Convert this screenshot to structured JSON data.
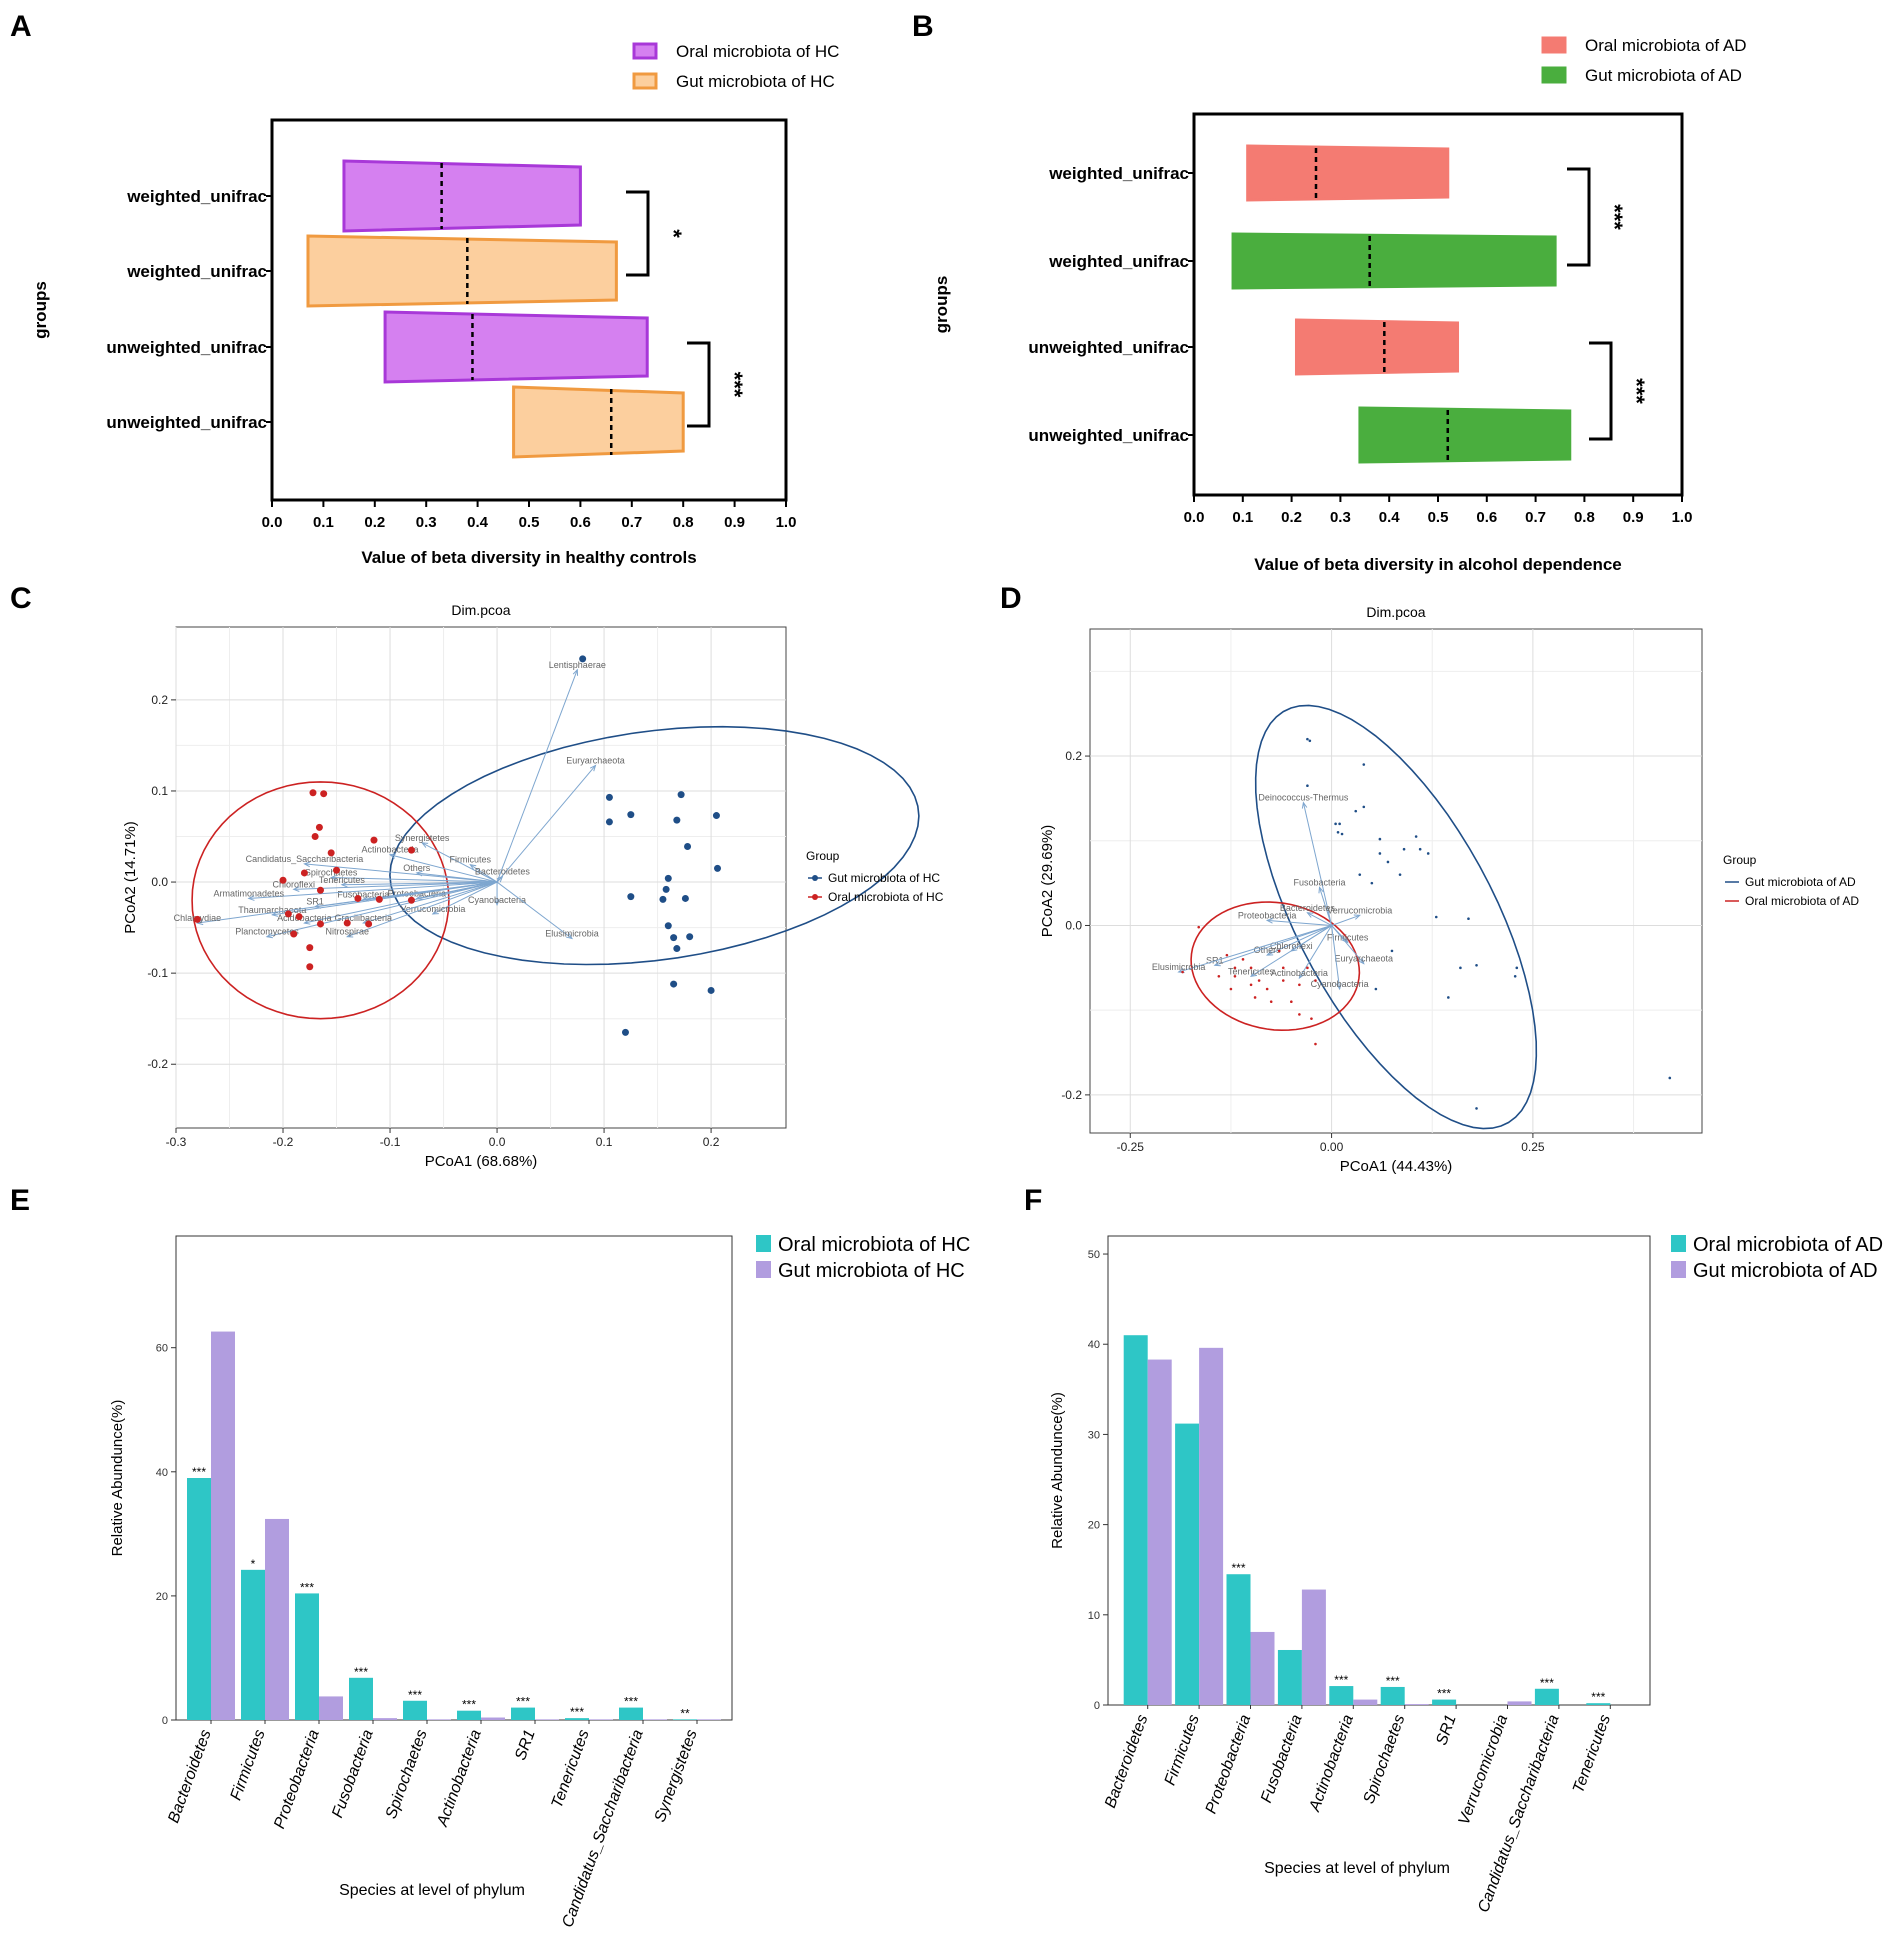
{
  "chart_data": [
    {
      "id": "A",
      "panel_letter": "A",
      "type": "violin_boxplot",
      "xlabel": "Value of beta diversity in healthy controls",
      "ylabel": "groups",
      "xlim": [
        0,
        1
      ],
      "x_ticks": [
        "0.0",
        "0.1",
        "0.2",
        "0.3",
        "0.4",
        "0.5",
        "0.6",
        "0.7",
        "0.8",
        "0.9",
        "1.0"
      ],
      "legend": [
        {
          "label": "Oral microbiota of HC",
          "color": "#d580f0",
          "edge": "#a838d8"
        },
        {
          "label": "Gut microbiota of HC",
          "color": "#fccf9e",
          "edge": "#f09a40"
        }
      ],
      "rows": [
        {
          "label": "weighted_unifrac",
          "group": 0,
          "min": 0.14,
          "median": 0.33,
          "max": 0.6
        },
        {
          "label": "weighted_unifrac",
          "group": 1,
          "min": 0.07,
          "median": 0.38,
          "max": 0.67
        },
        {
          "label": "unweighted_unifrac",
          "group": 0,
          "min": 0.22,
          "median": 0.39,
          "max": 0.73
        },
        {
          "label": "unweighted_unifrac",
          "group": 1,
          "min": 0.47,
          "median": 0.66,
          "max": 0.8
        }
      ],
      "significance": [
        {
          "rows": [
            0,
            1
          ],
          "label": "*"
        },
        {
          "rows": [
            2,
            3
          ],
          "label": "***"
        }
      ]
    },
    {
      "id": "B",
      "panel_letter": "B",
      "type": "violin_boxplot",
      "xlabel": "Value of beta diversity in alcohol dependence",
      "ylabel": "groups",
      "xlim": [
        0,
        1
      ],
      "x_ticks": [
        "0.0",
        "0.1",
        "0.2",
        "0.3",
        "0.4",
        "0.5",
        "0.6",
        "0.7",
        "0.8",
        "0.9",
        "1.0"
      ],
      "legend": [
        {
          "label": "Oral microbiota of AD",
          "color": "#f47b72",
          "edge": "#f47b72"
        },
        {
          "label": "Gut microbiota of AD",
          "color": "#4aae3e",
          "edge": "#4aae3e"
        }
      ],
      "rows": [
        {
          "label": "weighted_unifrac",
          "group": 0,
          "min": 0.11,
          "median": 0.25,
          "max": 0.52
        },
        {
          "label": "weighted_unifrac",
          "group": 1,
          "min": 0.08,
          "median": 0.36,
          "max": 0.74
        },
        {
          "label": "unweighted_unifrac",
          "group": 0,
          "min": 0.21,
          "median": 0.39,
          "max": 0.54
        },
        {
          "label": "unweighted_unifrac",
          "group": 1,
          "min": 0.34,
          "median": 0.52,
          "max": 0.77
        }
      ],
      "significance": [
        {
          "rows": [
            0,
            1
          ],
          "label": "***"
        },
        {
          "rows": [
            2,
            3
          ],
          "label": "***"
        }
      ]
    },
    {
      "id": "C",
      "panel_letter": "C",
      "type": "scatter",
      "title": "Dim.pcoa",
      "xlabel": "PCoA1 (68.68%)",
      "ylabel": "PCoA2 (14.71%)",
      "xlim": [
        -0.3,
        0.27
      ],
      "ylim": [
        -0.27,
        0.28
      ],
      "x_ticks": [
        -0.3,
        -0.2,
        -0.1,
        0.0,
        0.1,
        0.2
      ],
      "x_tick_labels": [
        "-0.3",
        "-0.2",
        "-0.1",
        "0.0",
        "0.1",
        "0.2"
      ],
      "y_ticks": [
        -0.2,
        -0.1,
        0.0,
        0.1,
        0.2
      ],
      "y_tick_labels": [
        "-0.2",
        "-0.1",
        "0.0",
        "0.1",
        "0.2"
      ],
      "legend_title": "Group",
      "series": [
        {
          "name": "Gut microbiota of HC",
          "color": "#1f4e87",
          "points": [
            [
              0.08,
              0.245
            ],
            [
              0.105,
              0.093
            ],
            [
              0.125,
              0.074
            ],
            [
              0.105,
              0.066
            ],
            [
              0.172,
              0.096
            ],
            [
              0.168,
              0.068
            ],
            [
              0.205,
              0.073
            ],
            [
              0.178,
              0.039
            ],
            [
              0.16,
              0.004
            ],
            [
              0.206,
              0.015
            ],
            [
              0.125,
              -0.016
            ],
            [
              0.158,
              -0.008
            ],
            [
              0.176,
              -0.018
            ],
            [
              0.155,
              -0.019
            ],
            [
              0.16,
              -0.048
            ],
            [
              0.18,
              -0.06
            ],
            [
              0.165,
              -0.061
            ],
            [
              0.168,
              -0.073
            ],
            [
              0.165,
              -0.112
            ],
            [
              0.2,
              -0.119
            ],
            [
              0.12,
              -0.165
            ]
          ],
          "ellipse": {
            "cx": 0.147,
            "cy": 0.04,
            "rx": 0.125,
            "ry": 0.25,
            "rot": -80
          }
        },
        {
          "name": "Oral microbiota of HC",
          "color": "#cc2222",
          "points": [
            [
              -0.172,
              0.098
            ],
            [
              -0.162,
              0.097
            ],
            [
              -0.166,
              0.06
            ],
            [
              -0.17,
              0.05
            ],
            [
              -0.115,
              0.046
            ],
            [
              -0.155,
              0.032
            ],
            [
              -0.08,
              0.035
            ],
            [
              -0.18,
              0.01
            ],
            [
              -0.15,
              0.013
            ],
            [
              -0.2,
              0.002
            ],
            [
              -0.165,
              -0.009
            ],
            [
              -0.11,
              -0.019
            ],
            [
              -0.13,
              -0.018
            ],
            [
              -0.08,
              -0.02
            ],
            [
              -0.185,
              -0.038
            ],
            [
              -0.195,
              -0.035
            ],
            [
              -0.14,
              -0.045
            ],
            [
              -0.165,
              -0.046
            ],
            [
              -0.12,
              -0.046
            ],
            [
              -0.28,
              -0.041
            ],
            [
              -0.19,
              -0.057
            ],
            [
              -0.175,
              -0.072
            ],
            [
              -0.175,
              -0.093
            ]
          ],
          "ellipse": {
            "cx": -0.165,
            "cy": -0.02,
            "rx": 0.12,
            "ry": 0.13,
            "rot": 0
          }
        }
      ],
      "arrows": [
        {
          "name": "Lentisphaerae",
          "x": 0.075,
          "y": 0.233
        },
        {
          "name": "Euryarchaeota",
          "x": 0.092,
          "y": 0.128
        },
        {
          "name": "Synergistetes",
          "x": -0.07,
          "y": 0.043
        },
        {
          "name": "Actinobacteria",
          "x": -0.1,
          "y": 0.03
        },
        {
          "name": "Firmicutes",
          "x": -0.025,
          "y": 0.019
        },
        {
          "name": "Candidatus_Saccharibacteria",
          "x": -0.18,
          "y": 0.02
        },
        {
          "name": "Others",
          "x": -0.075,
          "y": 0.01
        },
        {
          "name": "Spirochaetes",
          "x": -0.155,
          "y": 0.005
        },
        {
          "name": "Bacteroidetes",
          "x": 0.005,
          "y": 0.006
        },
        {
          "name": "Tenericutes",
          "x": -0.145,
          "y": -0.003
        },
        {
          "name": "Chloroflexi",
          "x": -0.19,
          "y": -0.008
        },
        {
          "name": "Proteobacteria",
          "x": -0.075,
          "y": -0.018
        },
        {
          "name": "Fusobacteria",
          "x": -0.125,
          "y": -0.019
        },
        {
          "name": "Armatimonadetes",
          "x": -0.232,
          "y": -0.018
        },
        {
          "name": "Cyanobacteria",
          "x": 0.0,
          "y": -0.025
        },
        {
          "name": "SR1",
          "x": -0.17,
          "y": -0.027
        },
        {
          "name": "Thaumarchaeota",
          "x": -0.21,
          "y": -0.036
        },
        {
          "name": "Verrucomicrobia",
          "x": -0.06,
          "y": -0.035
        },
        {
          "name": "Acidobacteria",
          "x": -0.18,
          "y": -0.045
        },
        {
          "name": "Gracilibacteria",
          "x": -0.125,
          "y": -0.045
        },
        {
          "name": "Chlamydiae",
          "x": -0.28,
          "y": -0.045
        },
        {
          "name": "Nitrospirae",
          "x": -0.14,
          "y": -0.06
        },
        {
          "name": "Planctomycetes",
          "x": -0.215,
          "y": -0.06
        },
        {
          "name": "Elusimicrobia",
          "x": 0.07,
          "y": -0.062
        }
      ]
    },
    {
      "id": "D",
      "panel_letter": "D",
      "type": "scatter",
      "title": "Dim.pcoa",
      "xlabel": "PCoA1 (44.43%)",
      "ylabel": "PCoA2 (29.69%)",
      "xlim": [
        -0.3,
        0.46
      ],
      "ylim": [
        -0.245,
        0.35
      ],
      "x_ticks": [
        -0.25,
        0.0,
        0.25
      ],
      "x_tick_labels": [
        "-0.25",
        "0.00",
        "0.25"
      ],
      "x_minor": [
        -0.125,
        0.125,
        0.375
      ],
      "y_ticks": [
        -0.2,
        0.0,
        0.2
      ],
      "y_tick_labels": [
        "-0.2",
        "0.0",
        "0.2"
      ],
      "y_minor": [
        -0.1,
        0.1,
        0.3
      ],
      "legend_title": "Group",
      "series": [
        {
          "name": "Gut microbiota of AD",
          "color": "#1f4e87",
          "points": [
            [
              -0.03,
              0.22
            ],
            [
              -0.027,
              0.218
            ],
            [
              0.04,
              0.19
            ],
            [
              -0.03,
              0.165
            ],
            [
              0.04,
              0.14
            ],
            [
              0.03,
              0.135
            ],
            [
              0.005,
              0.12
            ],
            [
              0.01,
              0.12
            ],
            [
              0.008,
              0.11
            ],
            [
              0.013,
              0.108
            ],
            [
              0.06,
              0.102
            ],
            [
              0.105,
              0.105
            ],
            [
              0.09,
              0.09
            ],
            [
              0.11,
              0.09
            ],
            [
              0.12,
              0.085
            ],
            [
              0.06,
              0.085
            ],
            [
              0.07,
              0.075
            ],
            [
              0.035,
              0.06
            ],
            [
              0.085,
              0.06
            ],
            [
              0.05,
              0.05
            ],
            [
              0.13,
              0.01
            ],
            [
              0.17,
              0.008
            ],
            [
              0.075,
              -0.03
            ],
            [
              0.18,
              -0.047
            ],
            [
              0.16,
              -0.05
            ],
            [
              0.23,
              -0.05
            ],
            [
              0.228,
              -0.06
            ],
            [
              0.055,
              -0.075
            ],
            [
              0.145,
              -0.085
            ],
            [
              0.42,
              -0.18
            ],
            [
              0.18,
              -0.216
            ]
          ],
          "ellipse": {
            "cx": 0.08,
            "cy": 0.01,
            "rx": 0.28,
            "ry": 0.12,
            "rot": -60
          }
        },
        {
          "name": "Oral microbiota of AD",
          "color": "#cc2222",
          "points": [
            [
              -0.165,
              -0.002
            ],
            [
              -0.185,
              -0.055
            ],
            [
              -0.13,
              -0.035
            ],
            [
              -0.11,
              -0.04
            ],
            [
              -0.12,
              -0.05
            ],
            [
              -0.1,
              -0.05
            ],
            [
              -0.12,
              -0.06
            ],
            [
              -0.09,
              -0.065
            ],
            [
              -0.1,
              -0.07
            ],
            [
              -0.08,
              -0.075
            ],
            [
              -0.095,
              -0.085
            ],
            [
              -0.075,
              -0.09
            ],
            [
              -0.05,
              -0.09
            ],
            [
              -0.04,
              -0.07
            ],
            [
              -0.04,
              -0.105
            ],
            [
              -0.025,
              -0.11
            ],
            [
              -0.06,
              -0.065
            ],
            [
              -0.03,
              -0.05
            ],
            [
              -0.125,
              -0.075
            ],
            [
              -0.14,
              -0.06
            ],
            [
              -0.065,
              -0.03
            ],
            [
              -0.06,
              -0.05
            ],
            [
              -0.02,
              -0.065
            ],
            [
              -0.02,
              -0.14
            ]
          ],
          "ellipse": {
            "cx": -0.07,
            "cy": -0.048,
            "rx": 0.105,
            "ry": 0.075,
            "rot": -8
          }
        }
      ],
      "arrows": [
        {
          "name": "Deinococcus-Thermus",
          "x": -0.035,
          "y": 0.145
        },
        {
          "name": "Fusobacteria",
          "x": -0.015,
          "y": 0.045
        },
        {
          "name": "Bacteroidetes",
          "x": -0.03,
          "y": 0.015
        },
        {
          "name": "Verrucomicrobia",
          "x": 0.035,
          "y": 0.012
        },
        {
          "name": "Proteobacteria",
          "x": -0.08,
          "y": 0.006
        },
        {
          "name": "Firmicutes",
          "x": 0.02,
          "y": -0.02
        },
        {
          "name": "Others",
          "x": -0.08,
          "y": -0.035
        },
        {
          "name": "Chloroflexi",
          "x": -0.05,
          "y": -0.03
        },
        {
          "name": "SR1",
          "x": -0.145,
          "y": -0.047
        },
        {
          "name": "Euryarchaeota",
          "x": 0.04,
          "y": -0.045
        },
        {
          "name": "Elusimicrobia",
          "x": -0.19,
          "y": -0.055
        },
        {
          "name": "Tenericutes",
          "x": -0.1,
          "y": -0.06
        },
        {
          "name": "Actinobacteria",
          "x": -0.04,
          "y": -0.062
        },
        {
          "name": "Cyanobacteria",
          "x": 0.01,
          "y": -0.075
        }
      ]
    },
    {
      "id": "E",
      "panel_letter": "E",
      "type": "bar",
      "xlabel": "Species at level of phylum",
      "ylabel": "Relative Abundunce(%)",
      "ylim": [
        0,
        78
      ],
      "y_ticks": [
        "0",
        "20",
        "40",
        "60"
      ],
      "categories": [
        "Bacteroidetes",
        "Firmicutes",
        "Proteobacteria",
        "Fusobacteria",
        "Spirochaetes",
        "Actinobacteria",
        "SR1",
        "Tenericutes",
        "Candidatus_Saccharibacteria",
        "Synergistetes"
      ],
      "series": [
        {
          "name": "Oral microbiota of HC",
          "color": "#2ec6c6",
          "values": [
            39,
            24.2,
            20.4,
            6.8,
            3.1,
            1.5,
            2,
            0.3,
            2,
            0.1
          ]
        },
        {
          "name": "Gut microbiota of HC",
          "color": "#b19ddf",
          "values": [
            62.6,
            32.4,
            3.8,
            0.3,
            0.1,
            0.4,
            0.1,
            0.1,
            0.1,
            0.1
          ]
        }
      ],
      "annotations": [
        "***",
        "*",
        "***",
        "***",
        "***",
        "***",
        "***",
        "***",
        "***",
        "**"
      ]
    },
    {
      "id": "F",
      "panel_letter": "F",
      "type": "bar",
      "xlabel": "Species at level of phylum",
      "ylabel": "Relative Abundunce(%)",
      "ylim": [
        0,
        52
      ],
      "y_ticks": [
        "0",
        "10",
        "20",
        "30",
        "40",
        "50"
      ],
      "categories": [
        "Bacteroidetes",
        "Firmicutes",
        "Proteobacteria",
        "Fusobacteria",
        "Actinobacteria",
        "Spirochaetes",
        "SR1",
        "Verrucomicrobia",
        "Candidatus_Saccharibacteria",
        "Tenericutes"
      ],
      "series": [
        {
          "name": "Oral microbiota of AD",
          "color": "#2ec6c6",
          "values": [
            41,
            31.2,
            14.5,
            6.1,
            2.1,
            2,
            0.6,
            0,
            1.8,
            0.2
          ]
        },
        {
          "name": "Gut microbiota of AD",
          "color": "#b19ddf",
          "values": [
            38.3,
            39.6,
            8.1,
            12.8,
            0.6,
            0.1,
            0,
            0.4,
            0,
            0
          ]
        }
      ],
      "annotations": [
        "",
        "",
        "***",
        "",
        "***",
        "***",
        "***",
        "",
        "***",
        "***"
      ]
    }
  ]
}
